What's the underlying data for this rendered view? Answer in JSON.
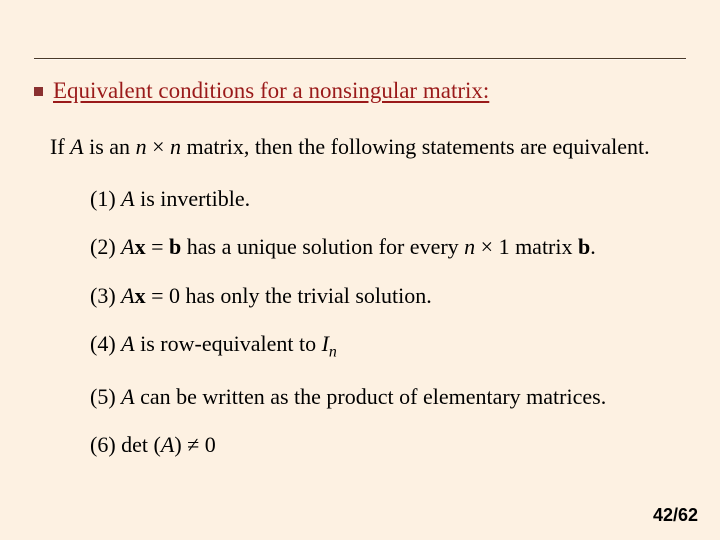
{
  "style": {
    "background_color": "#fdf1e2",
    "rule_color": "#4a3a2a",
    "heading_color": "#9a1a1a",
    "bullet_color": "#8a3030",
    "body_text_color": "#000000",
    "font_family_body": "Times New Roman",
    "font_family_pageno": "Arial",
    "heading_fontsize": 23,
    "body_fontsize": 22,
    "pageno_fontsize": 18,
    "slide_width": 720,
    "slide_height": 540
  },
  "heading": "Equivalent conditions for a nonsingular matrix:",
  "intro": {
    "pre": "If ",
    "A": "A",
    "mid1": " is an ",
    "n1": "n",
    "times": " × ",
    "n2": "n",
    "mid2": " matrix, then the following statements are equivalent."
  },
  "items": {
    "i1": {
      "num": "(1)  ",
      "A": "A",
      "rest": " is invertible."
    },
    "i2": {
      "num": "(2) ",
      "A": "A",
      "x": "x",
      "eqb": " = ",
      "b": "b",
      "mid": " has a unique solution for every ",
      "n": "n",
      "times": " × 1 matrix ",
      "b2": "b",
      "dot": "."
    },
    "i3": {
      "num": "(3)  ",
      "A": "A",
      "x": "x",
      "rest": " = 0 has only the trivial solution."
    },
    "i4": {
      "num": "(4)  ",
      "A": "A",
      "mid": " is row-equivalent to ",
      "I": "I",
      "nsub": "n"
    },
    "i5": {
      "num": "(5)  ",
      "A": "A",
      "rest": " can be written as the product of elementary matrices."
    },
    "i6": {
      "num": "(6)  det (",
      "A": "A",
      "mid": ") ",
      "neq": "≠",
      "zero": " 0"
    }
  },
  "pageno": "42/62"
}
